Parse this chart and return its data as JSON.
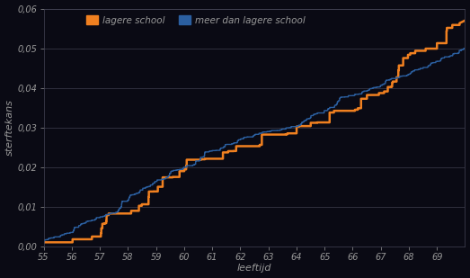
{
  "xlabel": "leeftijd",
  "ylabel": "sterftekans",
  "legend_lagere": "lagere school",
  "legend_meer": "meer dan lagere school",
  "color_lagere": "#F08020",
  "color_meer": "#2B5FA0",
  "fig_bg_color": "#0a0a14",
  "plot_bg_color": "#0a0a14",
  "text_color": "#999999",
  "grid_color": "#555566",
  "xlim": [
    55,
    70
  ],
  "ylim": [
    0.0,
    0.06
  ],
  "x_ticks": [
    55,
    56,
    57,
    58,
    59,
    60,
    61,
    62,
    63,
    64,
    65,
    66,
    67,
    68,
    69
  ],
  "y_ticks": [
    0.0,
    0.01,
    0.02,
    0.03,
    0.04,
    0.05,
    0.06
  ]
}
